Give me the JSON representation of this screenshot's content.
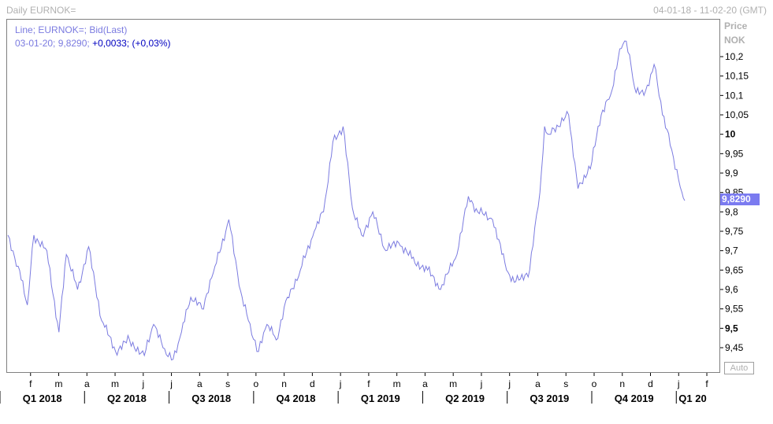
{
  "header": {
    "title": "Daily EURNOK=",
    "date_range": "04-01-18 - 11-02-20 (GMT)"
  },
  "legend": {
    "line1": "Line; EURNOK=; Bid(Last)",
    "line2_date": "03-01-20; 9,8290;",
    "line2_change": "+0,0033; (+0,03%)"
  },
  "axis_header": {
    "line1": "Price",
    "line2": "NOK"
  },
  "auto_button": "Auto",
  "last_value_label": "9,8290",
  "colors": {
    "line": "#7b7be0",
    "last_label_bg": "#7b7bf0",
    "legend_change": "#0000c0",
    "frame": "#808080"
  },
  "chart_data": {
    "type": "line",
    "title": "Daily EURNOK=",
    "series": [
      {
        "name": "EURNOK=",
        "x": [
          "2018-01-04",
          "2018-01-15",
          "2018-01-25",
          "2018-02-01",
          "2018-02-15",
          "2018-02-28",
          "2018-03-08",
          "2018-03-20",
          "2018-04-01",
          "2018-04-15",
          "2018-04-30",
          "2018-05-15",
          "2018-05-31",
          "2018-06-10",
          "2018-06-20",
          "2018-07-01",
          "2018-07-10",
          "2018-07-20",
          "2018-08-01",
          "2018-08-15",
          "2018-08-30",
          "2018-09-10",
          "2018-09-20",
          "2018-10-01",
          "2018-10-10",
          "2018-10-20",
          "2018-11-01",
          "2018-11-15",
          "2018-11-30",
          "2018-12-10",
          "2018-12-20",
          "2018-12-31",
          "2019-01-10",
          "2019-01-20",
          "2019-02-01",
          "2019-02-15",
          "2019-03-01",
          "2019-03-15",
          "2019-04-01",
          "2019-04-15",
          "2019-05-01",
          "2019-05-15",
          "2019-05-25",
          "2019-06-10",
          "2019-06-25",
          "2019-07-05",
          "2019-07-20",
          "2019-07-31",
          "2019-08-05",
          "2019-08-10",
          "2019-08-20",
          "2019-08-31",
          "2019-09-10",
          "2019-09-25",
          "2019-10-05",
          "2019-10-15",
          "2019-10-25",
          "2019-11-01",
          "2019-11-10",
          "2019-11-20",
          "2019-12-01",
          "2019-12-10",
          "2019-12-20",
          "2019-12-31",
          "2020-01-03"
        ],
        "values": [
          9.74,
          9.66,
          9.56,
          9.74,
          9.7,
          9.49,
          9.69,
          9.6,
          9.71,
          9.52,
          9.44,
          9.47,
          9.43,
          9.51,
          9.45,
          9.42,
          9.49,
          9.58,
          9.55,
          9.66,
          9.78,
          9.61,
          9.52,
          9.44,
          9.51,
          9.47,
          9.58,
          9.65,
          9.75,
          9.8,
          9.98,
          10.02,
          9.81,
          9.74,
          9.8,
          9.7,
          9.72,
          9.68,
          9.65,
          9.6,
          9.68,
          9.84,
          9.8,
          9.78,
          9.65,
          9.62,
          9.65,
          9.85,
          10.02,
          10.0,
          10.02,
          10.05,
          9.86,
          9.93,
          10.05,
          10.1,
          10.22,
          10.24,
          10.12,
          10.1,
          10.18,
          10.05,
          9.96,
          9.85,
          9.829
        ]
      }
    ],
    "ylim": [
      9.4,
      10.25
    ],
    "y_ticks": [
      "9,45",
      "9,5",
      "9,55",
      "9,6",
      "9,65",
      "9,7",
      "9,75",
      "9,8",
      "9,85",
      "9,9",
      "9,95",
      "10",
      "10,05",
      "10,1",
      "10,15",
      "10,2"
    ],
    "y_ticks_bold": [
      "9,5",
      "10"
    ],
    "x_month_labels": [
      "f",
      "m",
      "a",
      "m",
      "j",
      "j",
      "a",
      "s",
      "o",
      "n",
      "d",
      "j",
      "f",
      "m",
      "a",
      "m",
      "j",
      "j",
      "a",
      "s",
      "o",
      "n",
      "d",
      "j",
      "f"
    ],
    "x_quarter_labels": [
      "Q1 2018",
      "Q2 2018",
      "Q3 2018",
      "Q4 2018",
      "Q1 2019",
      "Q2 2019",
      "Q3 2019",
      "Q4 2019",
      "Q1 20"
    ],
    "grid": false,
    "last_value": "9,8290"
  }
}
